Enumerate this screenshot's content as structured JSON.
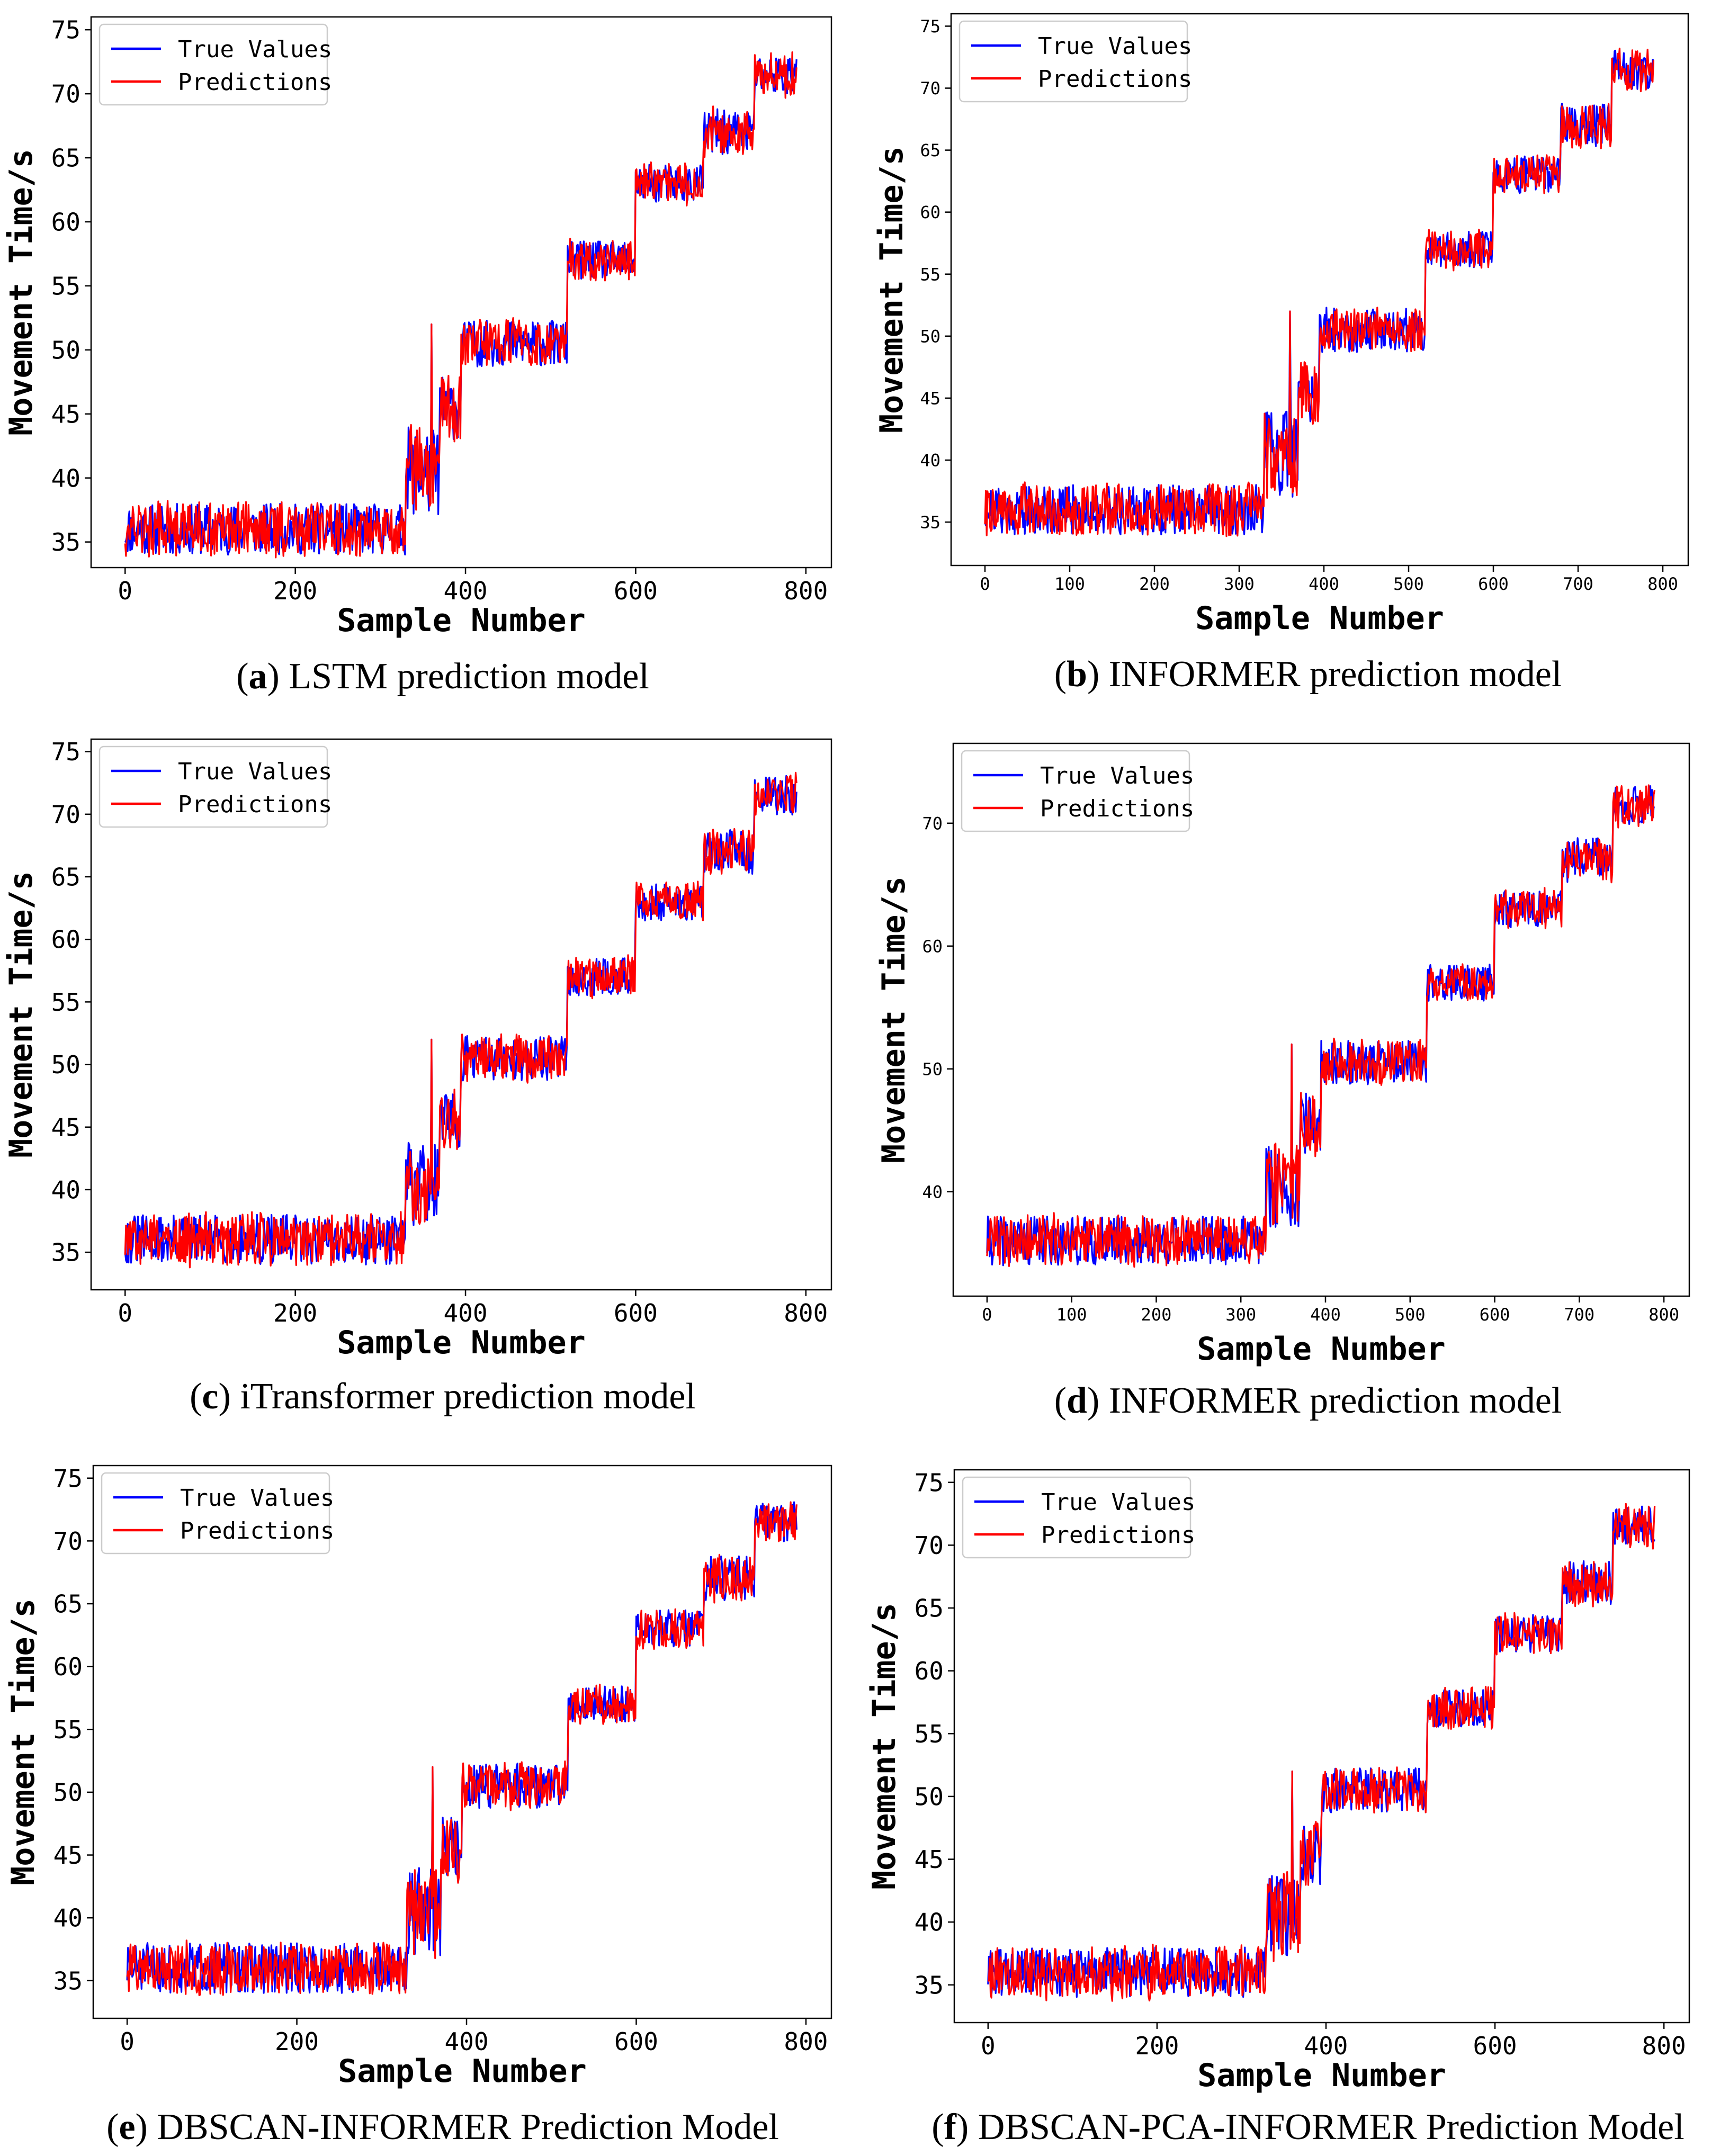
{
  "chart_data": [
    {
      "id": "a",
      "type": "line",
      "caption_letter": "a",
      "caption_text": "LSTM prediction model",
      "xlabel": "Sample Number",
      "ylabel": "Movement Time/s",
      "xlim": [
        -40,
        830
      ],
      "ylim": [
        33.0,
        76.0
      ],
      "xticks": [
        0,
        200,
        400,
        600,
        800
      ],
      "yticks": [
        35,
        40,
        45,
        50,
        55,
        60,
        65,
        70,
        75
      ],
      "legend": {
        "position": "upper-left",
        "entries": [
          "True Values",
          "Predictions"
        ]
      },
      "series": [
        {
          "name": "True Values",
          "color": "#0000ff",
          "seed": 11
        },
        {
          "name": "Predictions",
          "color": "#ff0000",
          "seed": 12
        }
      ]
    },
    {
      "id": "b",
      "type": "line",
      "caption_letter": "b",
      "caption_text": "INFORMER prediction model",
      "xlabel": "Sample Number",
      "ylabel": "Movement Time/s",
      "xlim": [
        -40,
        830
      ],
      "ylim": [
        31.5,
        76.0
      ],
      "xticks": [
        0,
        100,
        200,
        300,
        400,
        500,
        600,
        700,
        800
      ],
      "yticks": [
        35,
        40,
        45,
        50,
        55,
        60,
        65,
        70,
        75
      ],
      "legend": {
        "position": "upper-left",
        "entries": [
          "True Values",
          "Predictions"
        ]
      },
      "series": [
        {
          "name": "True Values",
          "color": "#0000ff",
          "seed": 21
        },
        {
          "name": "Predictions",
          "color": "#ff0000",
          "seed": 22
        }
      ]
    },
    {
      "id": "c",
      "type": "line",
      "caption_letter": "c",
      "caption_text": "iTransformer prediction model",
      "xlabel": "Sample Number",
      "ylabel": "Movement Time/s",
      "xlim": [
        -40,
        830
      ],
      "ylim": [
        32.0,
        76.0
      ],
      "xticks": [
        0,
        200,
        400,
        600,
        800
      ],
      "yticks": [
        35,
        40,
        45,
        50,
        55,
        60,
        65,
        70,
        75
      ],
      "legend": {
        "position": "upper-left",
        "entries": [
          "True Values",
          "Predictions"
        ]
      },
      "series": [
        {
          "name": "True Values",
          "color": "#0000ff",
          "seed": 31
        },
        {
          "name": "Predictions",
          "color": "#ff0000",
          "seed": 32
        }
      ]
    },
    {
      "id": "d",
      "type": "line",
      "caption_letter": "d",
      "caption_text": "INFORMER prediction model",
      "xlabel": "Sample Number",
      "ylabel": "Movement Time/s",
      "xlim": [
        -40,
        830
      ],
      "ylim": [
        31.5,
        76.5
      ],
      "xticks": [
        0,
        100,
        200,
        300,
        400,
        500,
        600,
        700,
        800
      ],
      "yticks": [
        40,
        50,
        60,
        70
      ],
      "legend": {
        "position": "upper-left",
        "entries": [
          "True Values",
          "Predictions"
        ]
      },
      "series": [
        {
          "name": "True Values",
          "color": "#0000ff",
          "seed": 41
        },
        {
          "name": "Predictions",
          "color": "#ff0000",
          "seed": 42
        }
      ]
    },
    {
      "id": "e",
      "type": "line",
      "caption_letter": "e",
      "caption_text": "DBSCAN-INFORMER Prediction Model",
      "xlabel": "Sample Number",
      "ylabel": "Movement Time/s",
      "xlim": [
        -40,
        830
      ],
      "ylim": [
        32.0,
        76.0
      ],
      "xticks": [
        0,
        200,
        400,
        600,
        800
      ],
      "yticks": [
        35,
        40,
        45,
        50,
        55,
        60,
        65,
        70,
        75
      ],
      "legend": {
        "position": "upper-left",
        "entries": [
          "True Values",
          "Predictions"
        ]
      },
      "series": [
        {
          "name": "True Values",
          "color": "#0000ff",
          "seed": 51
        },
        {
          "name": "Predictions",
          "color": "#ff0000",
          "seed": 52
        }
      ]
    },
    {
      "id": "f",
      "type": "line",
      "caption_letter": "f",
      "caption_text": "DBSCAN-PCA-INFORMER Prediction Model",
      "xlabel": "Sample Number",
      "ylabel": "Movement Time/s",
      "xlim": [
        -40,
        830
      ],
      "ylim": [
        32.0,
        76.0
      ],
      "xticks": [
        0,
        200,
        400,
        600,
        800
      ],
      "yticks": [
        35,
        40,
        45,
        50,
        55,
        60,
        65,
        70,
        75
      ],
      "legend": {
        "position": "upper-left",
        "entries": [
          "True Values",
          "Predictions"
        ]
      },
      "series": [
        {
          "name": "True Values",
          "color": "#0000ff",
          "seed": 61
        },
        {
          "name": "Predictions",
          "color": "#ff0000",
          "seed": 62
        }
      ]
    }
  ],
  "shared_trend": {
    "samples": 790,
    "x_start": 0,
    "x_end": 789,
    "segments": [
      {
        "from": 0,
        "to": 330,
        "level": 36.0,
        "amplitude": 2.0
      },
      {
        "from": 330,
        "to": 370,
        "level": 40.5,
        "amplitude": 3.5
      },
      {
        "from": 370,
        "to": 395,
        "level": 45.5,
        "amplitude": 2.5
      },
      {
        "from": 395,
        "to": 520,
        "level": 50.5,
        "amplitude": 1.8
      },
      {
        "from": 520,
        "to": 600,
        "level": 57.0,
        "amplitude": 1.5
      },
      {
        "from": 600,
        "to": 680,
        "level": 63.0,
        "amplitude": 1.5
      },
      {
        "from": 680,
        "to": 740,
        "level": 67.0,
        "amplitude": 1.8
      },
      {
        "from": 740,
        "to": 790,
        "level": 71.5,
        "amplitude": 1.6
      }
    ]
  }
}
